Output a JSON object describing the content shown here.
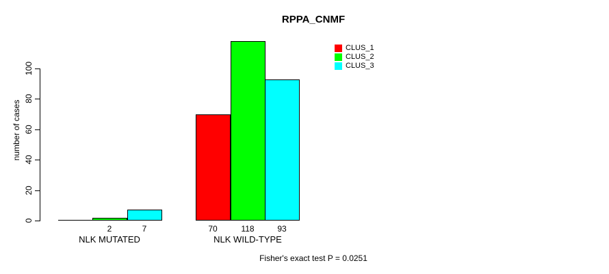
{
  "title": "RPPA_CNMF",
  "footer": "Fisher's exact test P = 0.0251",
  "chart_data": {
    "type": "bar",
    "title": "RPPA_CNMF",
    "categories": [
      "NLK MUTATED",
      "NLK WILD-TYPE"
    ],
    "series": [
      {
        "name": "CLUS_1",
        "color": "#FF0000",
        "values": [
          0,
          70
        ]
      },
      {
        "name": "CLUS_2",
        "color": "#00FF00",
        "values": [
          2,
          118
        ]
      },
      {
        "name": "CLUS_3",
        "color": "#00FFFF",
        "values": [
          7,
          93
        ]
      }
    ],
    "value_labels": [
      [
        "",
        "2",
        "7"
      ],
      [
        "70",
        "118",
        "93"
      ]
    ],
    "ylabel": "number of cases",
    "xlabel": "",
    "yticks": [
      0,
      20,
      40,
      60,
      80,
      100
    ],
    "ylim": [
      0,
      120
    ],
    "grid": false,
    "legend": {
      "position": "top-right",
      "entries": [
        "CLUS_1",
        "CLUS_2",
        "CLUS_3"
      ]
    },
    "annotation": "Fisher's exact test P = 0.0251"
  }
}
